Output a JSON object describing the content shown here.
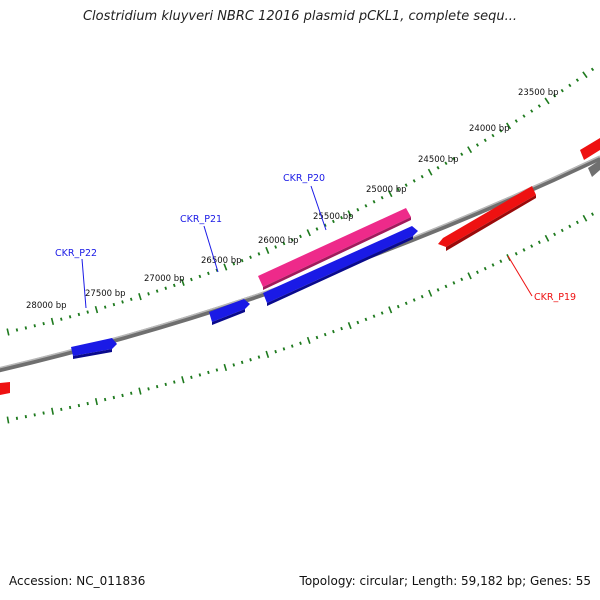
{
  "title": "Clostridium kluyveri NBRC 12016 plasmid pCKL1, complete sequ...",
  "footer": {
    "accession": "Accession: NC_011836",
    "summary": "Topology: circular; Length: 59,182 bp; Genes: 55"
  },
  "colors": {
    "backbone": "#8a8a8a",
    "ticks": "#1e7a1e",
    "forward_gene": "#1a1ae6",
    "reverse_gene": "#ee1111",
    "highlight_gene": "#ee2a8a"
  },
  "ticks": [
    {
      "label": "23500 bp"
    },
    {
      "label": "24000 bp"
    },
    {
      "label": "24500 bp"
    },
    {
      "label": "25000 bp"
    },
    {
      "label": "25500 bp"
    },
    {
      "label": "26000 bp"
    },
    {
      "label": "26500 bp"
    },
    {
      "label": "27000 bp"
    },
    {
      "label": "27500 bp"
    },
    {
      "label": "28000 bp"
    }
  ],
  "gene_labels": {
    "p19": "CKR_P19",
    "p20": "CKR_P20",
    "p21": "CKR_P21",
    "p22": "CKR_P22"
  }
}
